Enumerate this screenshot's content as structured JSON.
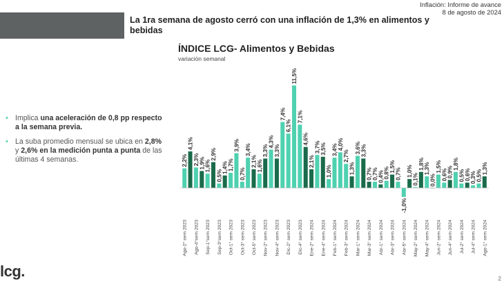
{
  "header": {
    "headline": "La 1ra semana de agosto cerró con una inflación de 1,3% en alimentos y bebidas",
    "report": "Inflación: Informe de avance",
    "date": "8 de agosto de 2024"
  },
  "bullets": [
    {
      "parts": [
        {
          "text": "Implica ",
          "bold": false
        },
        {
          "text": "una aceleración de 0,8 pp respecto a la semana previa.",
          "bold": true
        }
      ]
    },
    {
      "parts": [
        {
          "text": "La suba promedio mensual se ubica en ",
          "bold": false
        },
        {
          "text": "2,8%",
          "bold": true
        },
        {
          "text": " y ",
          "bold": false
        },
        {
          "text": "2,6% en la medición punta a punta",
          "bold": true
        },
        {
          "text": " de las últimas 4 semanas.",
          "bold": false
        }
      ]
    }
  ],
  "logo": "lcg.",
  "page_number": "2",
  "colors": {
    "light": "#4fd1b0",
    "dark": "#1a6b4b",
    "axis": "#bbbbbb",
    "text": "#333333"
  },
  "chart_data": {
    "type": "bar",
    "title": "ÍNDICE LCG- Alimentos y Bebidas",
    "subtitle": "variación semanal",
    "xlabel": "",
    "ylabel": "",
    "ylim": [
      -1.5,
      12
    ],
    "grid": false,
    "categories": [
      "Ago-2° sem 2023",
      "",
      "Ago-4°sem 2023",
      "",
      "Sep-1°sem 2023",
      "",
      "Sep-3°sem 2023",
      "",
      "Oct-1° sem 2023",
      "",
      "Oct-3° sem 2023",
      "",
      "Oct-5° sem 2023",
      "",
      "Nov-2° sem 2023",
      "",
      "Nov-4° sem 2023",
      "",
      "Dic-2° sem 2023",
      "",
      "Dic-4° sem 2023",
      "",
      "Ene-2° sem 2024",
      "",
      "Ene-4° sem 2024",
      "",
      "Feb-1° sem 2024",
      "",
      "Feb-3° sem 2024",
      "",
      "Mar-1° sem 2024",
      "",
      "Mar-3° sem 2024",
      "",
      "Abr-1° sem 2024",
      "",
      "Abr-3° sem 2024",
      "",
      "Abr-5° sem 2024",
      "",
      "May-2° sem 2024",
      "",
      "May-4° sem 2024",
      "",
      "Jun-2° sem 2024",
      "",
      "Jun-4° sem 2024",
      "",
      "Jul-2° sem 2024",
      "",
      "Jul-4° sem 2024",
      "",
      "Ago-1° sem 2024"
    ],
    "values": [
      2.2,
      4.1,
      2.3,
      1.9,
      1.6,
      2.9,
      0.5,
      1.4,
      1.7,
      3.9,
      0.7,
      3.4,
      2.1,
      1.6,
      3.3,
      4.3,
      3.3,
      7.4,
      6.1,
      11.5,
      7.1,
      4.6,
      2.1,
      3.7,
      3.5,
      1.0,
      3.4,
      4.0,
      2.7,
      1.3,
      3.6,
      3.3,
      0.7,
      0.7,
      0.4,
      0.8,
      1.5,
      0.7,
      -1.0,
      1.0,
      0.1,
      1.8,
      1.3,
      0.0,
      1.5,
      0.6,
      0.9,
      1.8,
      0.5,
      0.6,
      0.3,
      0.5,
      1.3
    ],
    "labels": [
      "2,2%",
      "4,1%",
      "2,3%",
      "1,9%",
      "1,6%",
      "2,9%",
      "0,5%",
      "1,4%",
      "1,7%",
      "3,9%",
      "0,7%",
      "3,4%",
      "2,1%",
      "1,6%",
      "3,3%",
      "4,3%",
      "3,3%",
      "7,4%",
      "6,1%",
      "11,5%",
      "7,1%",
      "4,6%",
      "2,1%",
      "3,7%",
      "3,5%",
      "1,0%",
      "3,4%",
      "4,0%",
      "2,7%",
      "1,3%",
      "3,6%",
      "3,3%",
      "0,7%",
      "0,7%",
      "0,4%",
      "0,8%",
      "1,5%",
      "0,7%",
      "-1,0%",
      "1,0%",
      "0,1%",
      "1,8%",
      "1,3%",
      "0,0%",
      "1,5%",
      "0,6%",
      "0,9%",
      "1,8%",
      "0,5%",
      "0,6%",
      "0,3%",
      "0,5%",
      "1,3%"
    ],
    "shades": [
      "light",
      "dark",
      "light",
      "dark",
      "light",
      "dark",
      "light",
      "dark",
      "light",
      "light",
      "light",
      "light",
      "dark",
      "light",
      "dark",
      "light",
      "dark",
      "light",
      "light",
      "light",
      "light",
      "dark",
      "dark",
      "light",
      "dark",
      "light",
      "light",
      "light",
      "light",
      "dark",
      "light",
      "dark",
      "dark",
      "light",
      "dark",
      "light",
      "dark",
      "light",
      "light",
      "dark",
      "light",
      "dark",
      "light",
      "dark",
      "light",
      "light",
      "dark",
      "light",
      "light",
      "dark",
      "light",
      "light",
      "dark"
    ]
  }
}
